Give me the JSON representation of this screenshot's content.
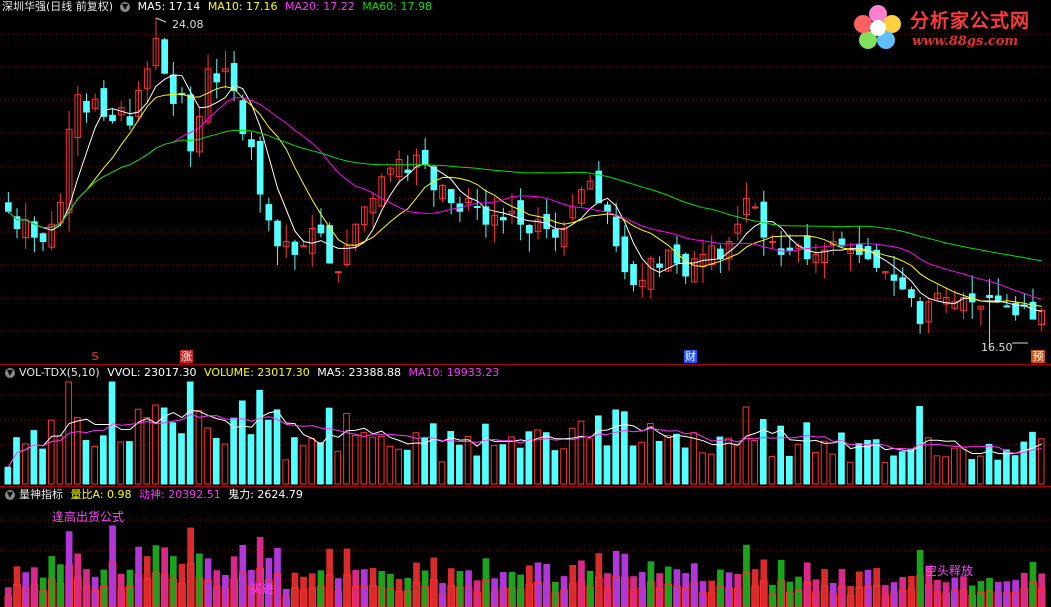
{
  "header": {
    "stock": "深圳华强(日线 前复权)",
    "ma5": "MA5: 17.14",
    "ma10": "MA10: 17.16",
    "ma20": "MA20: 17.22",
    "ma60": "MA60: 17.98"
  },
  "price_panel": {
    "high_label": "24.08",
    "low_label": "16.50",
    "markers": [
      "S",
      "涨",
      "财",
      "预"
    ]
  },
  "volume_panel": {
    "name": "VOL-TDX(5,10)",
    "vvol": "VVOL: 23017.30",
    "volume": "VOLUME: 23017.30",
    "ma5": "MA5: 23388.88",
    "ma10": "MA10: 19933.23"
  },
  "indicator_panel": {
    "name": "量神指标",
    "liangbi": "量比A: 0.98",
    "dongshen": "动神: 20392.51",
    "guili": "鬼力: 2624.79",
    "note1": "逢高出货公式",
    "note2": "买进",
    "note3": "空头释放"
  },
  "logo": {
    "title": "分析家公式网",
    "url": "www.88gs.com"
  },
  "colors": {
    "up": "#ff3232",
    "down": "#54ffff",
    "ma5": "#ffffff",
    "ma10": "#ffff00",
    "ma20": "#ff00ff",
    "ma60": "#00e000",
    "grid": "#8b0000",
    "bar_purple": "#d040ff",
    "bar_magenta": "#ff30a0",
    "bar_green": "#20c020"
  },
  "chart_data": {
    "type": "candlestick",
    "title": "深圳华强(日线 前复权)",
    "price_max": 24.08,
    "price_min": 16.5,
    "closes": [
      19.6,
      19.2,
      19.4,
      19.0,
      18.9,
      19.3,
      19.8,
      21.5,
      22.3,
      21.9,
      22.2,
      21.8,
      21.7,
      22.0,
      21.6,
      22.4,
      22.9,
      23.6,
      22.8,
      22.1,
      22.3,
      21.0,
      21.8,
      22.9,
      22.6,
      22.9,
      22.4,
      21.4,
      21.1,
      20.0,
      19.4,
      18.8,
      18.9,
      18.6,
      18.8,
      19.2,
      19.1,
      18.4,
      18.2,
      18.8,
      19.3,
      19.7,
      19.9,
      20.4,
      20.6,
      20.8,
      20.5,
      20.9,
      20.7,
      20.1,
      20.2,
      19.8,
      19.6,
      19.9,
      19.7,
      19.3,
      19.5,
      19.4,
      19.6,
      19.3,
      19.1,
      19.4,
      19.2,
      19.0,
      19.2,
      19.7,
      20.1,
      20.3,
      19.8,
      19.6,
      18.8,
      18.2,
      17.9,
      18.0,
      18.5,
      18.3,
      18.7,
      18.4,
      18.1,
      18.5,
      18.6,
      18.8,
      18.5,
      18.9,
      19.3,
      19.9,
      19.7,
      19.0,
      18.9,
      18.6,
      18.7,
      18.8,
      18.5,
      18.6,
      18.7,
      18.9,
      18.8,
      18.7,
      18.6,
      18.5,
      18.3,
      18.2,
      18.0,
      17.8,
      17.6,
      17.0,
      17.5,
      17.7,
      17.6,
      17.5,
      17.6,
      17.5,
      17.4,
      17.6,
      17.5,
      17.4,
      17.2,
      17.4,
      17.1,
      17.3
    ]
  }
}
